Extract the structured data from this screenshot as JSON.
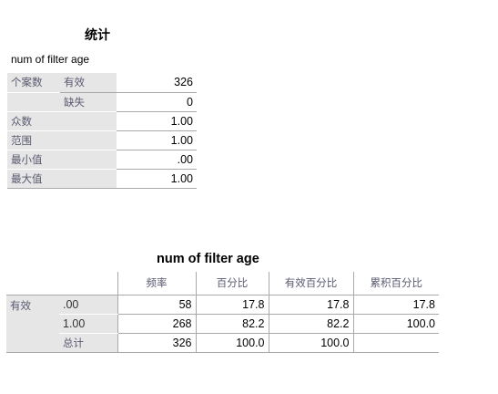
{
  "stats_table": {
    "title": "统计",
    "variable": "num of filter age",
    "rows": [
      {
        "label1": "个案数",
        "label2": "有效",
        "value": "326"
      },
      {
        "label1": "",
        "label2": "缺失",
        "value": "0"
      },
      {
        "label1": "众数",
        "label2": "",
        "value": "1.00"
      },
      {
        "label1": "范围",
        "label2": "",
        "value": "1.00"
      },
      {
        "label1": "最小值",
        "label2": "",
        "value": ".00"
      },
      {
        "label1": "最大值",
        "label2": "",
        "value": "1.00"
      }
    ]
  },
  "freq_table": {
    "title": "num of filter age",
    "columns": [
      "频率",
      "百分比",
      "有效百分比",
      "累积百分比"
    ],
    "group_label": "有效",
    "rows": [
      {
        "category": ".00",
        "freq": "58",
        "pct": "17.8",
        "valid_pct": "17.8",
        "cum_pct": "17.8"
      },
      {
        "category": "1.00",
        "freq": "268",
        "pct": "82.2",
        "valid_pct": "82.2",
        "cum_pct": "100.0"
      },
      {
        "category": "总计",
        "freq": "326",
        "pct": "100.0",
        "valid_pct": "100.0",
        "cum_pct": ""
      }
    ]
  }
}
